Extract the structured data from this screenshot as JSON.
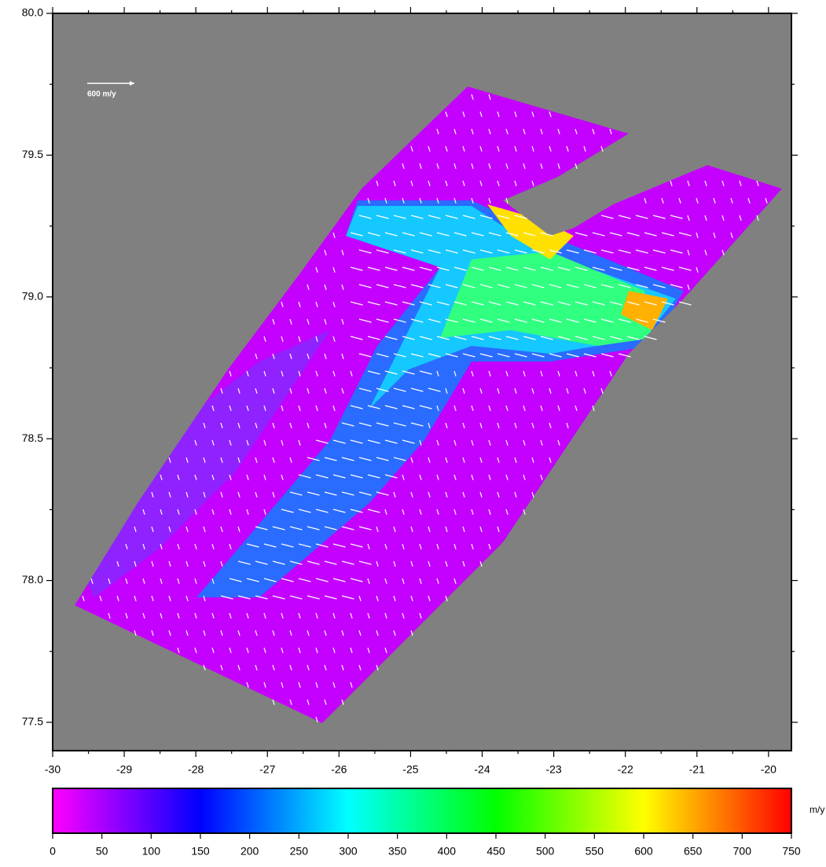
{
  "map": {
    "xlim": [
      -30,
      -19.68
    ],
    "xticks": [
      -30,
      -29,
      -28,
      -27,
      -26,
      -25,
      -24,
      -23,
      -22,
      -21,
      -20
    ],
    "ylim": [
      77.4,
      80.0
    ],
    "yticks": [
      77.5,
      {
        "value": 78.0,
        "label": "78.0"
      },
      78.5,
      {
        "value": 79.0,
        "label": "79.0"
      },
      79.5,
      {
        "value": 80.0,
        "label": "80.0"
      }
    ],
    "scale_arrow": {
      "label": "600 m/y",
      "value": 600
    },
    "colorbar": {
      "lim": [
        0,
        750
      ],
      "ticks": [
        0,
        50,
        100,
        150,
        200,
        250,
        300,
        350,
        400,
        450,
        500,
        550,
        600,
        650,
        700,
        750
      ],
      "unit": "m/y",
      "colors": [
        "#ff00ff",
        "#0000ff",
        "#00ffff",
        "#00ff00",
        "#ffff00",
        "#ff0000"
      ]
    }
  }
}
